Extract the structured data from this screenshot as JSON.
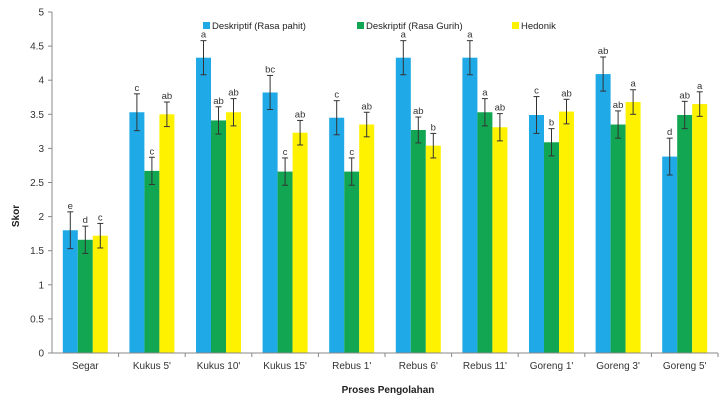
{
  "chart_data": {
    "type": "bar",
    "title": "",
    "xlabel": "Proses Pengolahan",
    "ylabel": "Skor",
    "ylim": [
      0,
      5
    ],
    "yticks": [
      "0",
      "0.5",
      "1",
      "1.5",
      "2",
      "2.5",
      "3",
      "3.5",
      "4",
      "4.5",
      "5"
    ],
    "grid": false,
    "legend_position": "top-center",
    "categories": [
      "Segar",
      "Kukus 5'",
      "Kukus 10'",
      "Kukus 15'",
      "Rebus 1'",
      "Rebus 6'",
      "Rebus 11'",
      "Goreng 1'",
      "Goreng 3'",
      "Goreng 5'"
    ],
    "series": [
      {
        "name": "Deskriptif (Rasa pahit)",
        "color": "#1FA9E6",
        "values": [
          1.8,
          3.53,
          4.33,
          3.82,
          3.45,
          4.33,
          4.33,
          3.49,
          4.09,
          2.88
        ],
        "errors": [
          0.27,
          0.27,
          0.25,
          0.25,
          0.25,
          0.25,
          0.25,
          0.27,
          0.25,
          0.27
        ],
        "labels": [
          "e",
          "c",
          "a",
          "bc",
          "c",
          "a",
          "a",
          "c",
          "ab",
          "d"
        ]
      },
      {
        "name": "Deskriptif (Rasa Gurih)",
        "color": "#12A652",
        "values": [
          1.66,
          2.67,
          3.41,
          2.66,
          2.66,
          3.27,
          3.53,
          3.09,
          3.35,
          3.49
        ],
        "errors": [
          0.2,
          0.2,
          0.2,
          0.2,
          0.2,
          0.19,
          0.2,
          0.2,
          0.2,
          0.2
        ],
        "labels": [
          "d",
          "c",
          "ab",
          "c",
          "c",
          "ab",
          "a",
          "b",
          "ab",
          "ab"
        ]
      },
      {
        "name": "Hedonik",
        "color": "#FFF200",
        "values": [
          1.72,
          3.5,
          3.53,
          3.23,
          3.35,
          3.04,
          3.31,
          3.54,
          3.68,
          3.65
        ],
        "errors": [
          0.18,
          0.18,
          0.2,
          0.18,
          0.18,
          0.18,
          0.2,
          0.18,
          0.18,
          0.18
        ],
        "labels": [
          "c",
          "ab",
          "ab",
          "ab",
          "ab",
          "b",
          "ab",
          "ab",
          "a",
          "a"
        ]
      }
    ]
  }
}
